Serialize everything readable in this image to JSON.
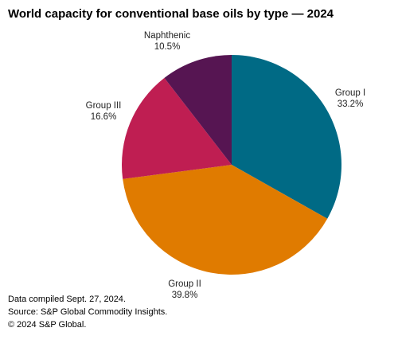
{
  "chart_data": {
    "type": "pie",
    "title": "World capacity for conventional base oils by type — 2024",
    "slices": [
      {
        "label": "Group I",
        "value": 33.2,
        "display": "33.2%",
        "color": "#006a85"
      },
      {
        "label": "Group II",
        "value": 39.8,
        "display": "39.8%",
        "color": "#e07b00"
      },
      {
        "label": "Group III",
        "value": 16.6,
        "display": "16.6%",
        "color": "#bf1e52"
      },
      {
        "label": "Naphthenic",
        "value": 10.5,
        "display": "10.5%",
        "color": "#561552"
      }
    ],
    "start_angle_deg": 0,
    "direction": "clockwise",
    "legend": "none"
  },
  "footnotes": {
    "compiled": "Data compiled Sept. 27, 2024.",
    "source": "Source: S&P Global Commodity Insights.",
    "copyright": "© 2024 S&P Global."
  }
}
